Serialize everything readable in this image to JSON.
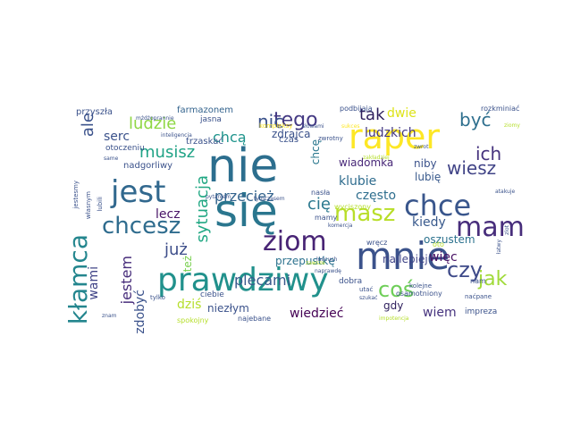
{
  "words": [
    {
      "text": "nie",
      "color": "#2c6e8e"
    },
    {
      "text": "się",
      "color": "#2a768e"
    },
    {
      "text": "prawdziwy",
      "color": "#21918c"
    },
    {
      "text": "mnie",
      "color": "#3b528b"
    },
    {
      "text": "raper",
      "color": "#fde725"
    },
    {
      "text": "jest",
      "color": "#31688e"
    },
    {
      "text": "chce",
      "color": "#39568c"
    },
    {
      "text": "mam",
      "color": "#472d7b"
    },
    {
      "text": "kłamca",
      "color": "#24868e"
    },
    {
      "text": "chcesz",
      "color": "#2f6c8e"
    },
    {
      "text": "ziom",
      "color": "#482475"
    },
    {
      "text": "masz",
      "color": "#b8de29"
    },
    {
      "text": "coś",
      "color": "#6ece58"
    },
    {
      "text": "czy",
      "color": "#3e4a89"
    },
    {
      "text": "jak",
      "color": "#a0da39"
    },
    {
      "text": "tego",
      "color": "#443983"
    },
    {
      "text": "nic",
      "color": "#3b528b"
    },
    {
      "text": "tak",
      "color": "#2d1e5c"
    },
    {
      "text": "dwie",
      "color": "#dde318"
    },
    {
      "text": "być",
      "color": "#2e6f8e"
    },
    {
      "text": "ich",
      "color": "#46337e"
    },
    {
      "text": "wiesz",
      "color": "#414487"
    },
    {
      "text": "ludzie",
      "color": "#8fd744"
    },
    {
      "text": "musisz",
      "color": "#20a386"
    },
    {
      "text": "chcą",
      "color": "#1f948c"
    },
    {
      "text": "ale",
      "color": "#3b528b"
    },
    {
      "text": "serc",
      "color": "#3b528b"
    },
    {
      "text": "sytuacja",
      "color": "#22a884"
    },
    {
      "text": "przecież",
      "color": "#33638d"
    },
    {
      "text": "już",
      "color": "#3d4e8a"
    },
    {
      "text": "cię",
      "color": "#2a788e"
    },
    {
      "text": "jestem",
      "color": "#472d7b"
    },
    {
      "text": "zdobyć",
      "color": "#3b528b"
    },
    {
      "text": "wami",
      "color": "#414487"
    },
    {
      "text": "lecz",
      "color": "#481467"
    },
    {
      "text": "plecami",
      "color": "#38598c"
    },
    {
      "text": "przepustkę",
      "color": "#2c728e"
    },
    {
      "text": "dziś",
      "color": "#b5de2b"
    },
    {
      "text": "niezłym",
      "color": "#3b528b"
    },
    {
      "text": "wiedzieć",
      "color": "#440154"
    },
    {
      "text": "wiem",
      "color": "#46337e"
    },
    {
      "text": "gdy",
      "color": "#2d1e5c"
    },
    {
      "text": "kiedy",
      "color": "#38598c"
    },
    {
      "text": "więc",
      "color": "#471063"
    },
    {
      "text": "oszustem",
      "color": "#2c728e"
    },
    {
      "text": "najlepiej",
      "color": "#404588"
    },
    {
      "text": "klubie",
      "color": "#2f6c8e"
    },
    {
      "text": "często",
      "color": "#2e6e8e"
    },
    {
      "text": "ludzkich",
      "color": "#443983"
    },
    {
      "text": "niby",
      "color": "#3b528b"
    },
    {
      "text": "lubię",
      "color": "#38598c"
    },
    {
      "text": "wiadomka",
      "color": "#482878"
    },
    {
      "text": "chcę",
      "color": "#2a788e"
    },
    {
      "text": "też",
      "color": "#7ad151"
    },
    {
      "text": "zdrajca",
      "color": "#3b528b"
    },
    {
      "text": "czas",
      "color": "#3b528b"
    },
    {
      "text": "farmazonem",
      "color": "#33638d"
    },
    {
      "text": "trzaskać",
      "color": "#3b528b"
    },
    {
      "text": "nadgorliwy",
      "color": "#3b528b"
    },
    {
      "text": "otoczeniu",
      "color": "#3b528b"
    },
    {
      "text": "przyszła",
      "color": "#3b528b"
    },
    {
      "text": "jasna",
      "color": "#3b528b"
    },
    {
      "text": "podbijają",
      "color": "#3b528b"
    },
    {
      "text": "rozkminiać",
      "color": "#3b528b"
    },
    {
      "text": "mżdżoprannie",
      "color": "#3b528b"
    },
    {
      "text": "inteligencja",
      "color": "#3b528b"
    },
    {
      "text": "kompleksy",
      "color": "#fde725"
    },
    {
      "text": "zwrotny",
      "color": "#3b528b"
    },
    {
      "text": "słowami",
      "color": "#3b528b"
    },
    {
      "text": "zakładziej",
      "color": "#b5de2b"
    },
    {
      "text": "zwrot",
      "color": "#3b528b"
    },
    {
      "text": "sukces",
      "color": "#fde725"
    },
    {
      "text": "nasła",
      "color": "#3b528b"
    },
    {
      "text": "wyciszony",
      "color": "#b5de2b"
    },
    {
      "text": "mamy",
      "color": "#3b528b"
    },
    {
      "text": "komercja",
      "color": "#3b528b"
    },
    {
      "text": "wręcz",
      "color": "#3b528b"
    },
    {
      "text": "oto",
      "color": "#b5de2b"
    },
    {
      "text": "nam",
      "color": "#3b528b"
    },
    {
      "text": "dobra",
      "color": "#3b528b"
    },
    {
      "text": "ciebie",
      "color": "#3b528b"
    },
    {
      "text": "osamotniony",
      "color": "#3b528b"
    },
    {
      "text": "najebane",
      "color": "#3b528b"
    },
    {
      "text": "spokojny",
      "color": "#b5de2b"
    },
    {
      "text": "impreza",
      "color": "#3b528b"
    },
    {
      "text": "impotencja",
      "color": "#b5de2b"
    },
    {
      "text": "kolejne",
      "color": "#3b528b"
    },
    {
      "text": "naćpane",
      "color": "#3b528b"
    },
    {
      "text": "jestesmy",
      "color": "#3b528b"
    },
    {
      "text": "własnym",
      "color": "#3b528b"
    },
    {
      "text": "lubili",
      "color": "#3b528b"
    },
    {
      "text": "same",
      "color": "#3b528b"
    },
    {
      "text": "pytaniem",
      "color": "#3b528b"
    },
    {
      "text": "tymczasem",
      "color": "#3b528b"
    },
    {
      "text": "łańcuch",
      "color": "#3b528b"
    },
    {
      "text": "utać",
      "color": "#3b528b"
    },
    {
      "text": "naprawdę",
      "color": "#3b528b"
    },
    {
      "text": "zawsze",
      "color": "#b5de2b"
    },
    {
      "text": "zlot",
      "color": "#3b528b"
    },
    {
      "text": "atakuje",
      "color": "#3b528b"
    },
    {
      "text": "ziomy",
      "color": "#b5de2b"
    },
    {
      "text": "szukać",
      "color": "#3b528b"
    },
    {
      "text": "tylko",
      "color": "#3b528b"
    },
    {
      "text": "znam",
      "color": "#3b528b"
    },
    {
      "text": "łatwy",
      "color": "#3b528b"
    }
  ]
}
